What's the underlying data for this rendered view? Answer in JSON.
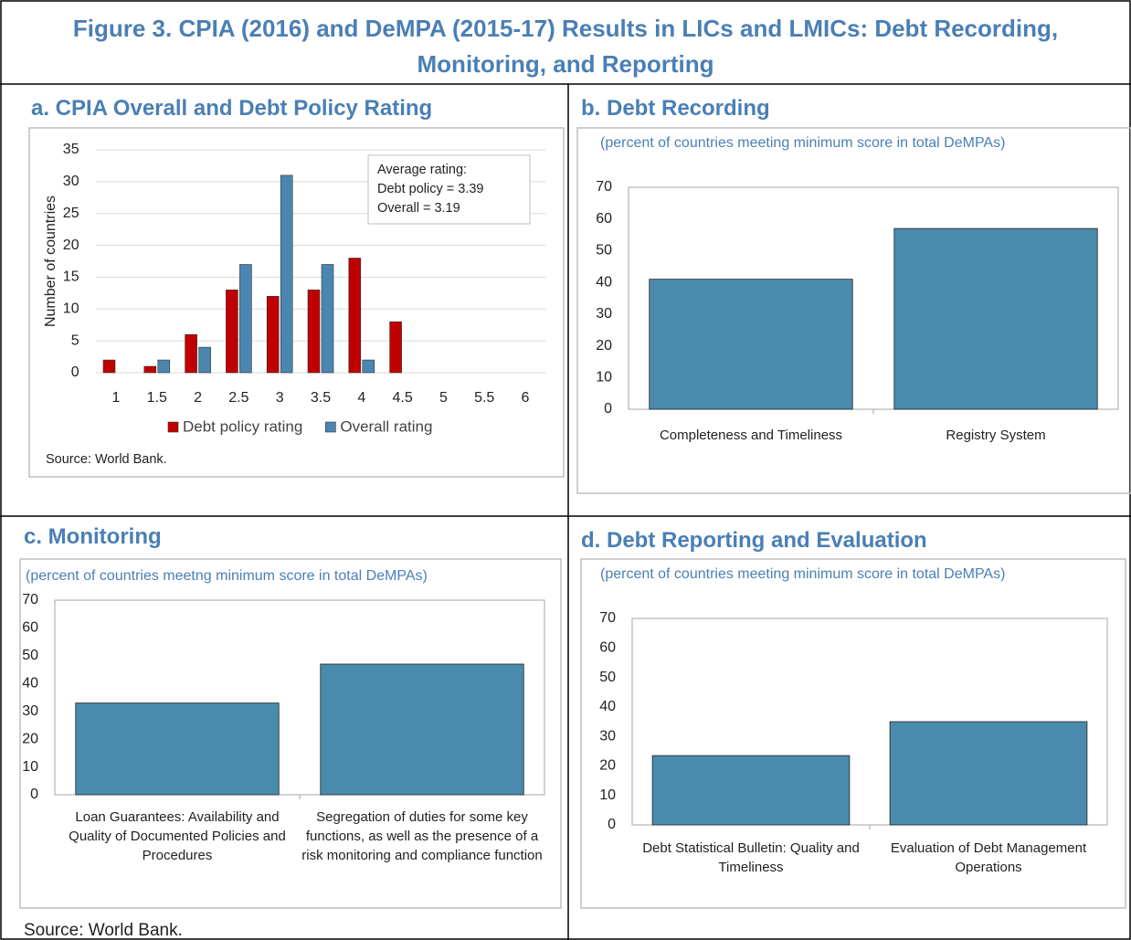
{
  "title": "Figure 3. CPIA (2016) and DeMPA (2015-17) Results in LICs and LMICs: Debt Recording, Monitoring, and Reporting",
  "source": "Source: World Bank.",
  "chart_data": [
    {
      "type": "grouped_bar",
      "title": "a. CPIA Overall and Debt Policy Rating",
      "y_label": "Number of countries",
      "categories": [
        "1",
        "1.5",
        "2",
        "2.5",
        "3",
        "3.5",
        "4",
        "4.5",
        "5",
        "5.5",
        "6"
      ],
      "series": [
        {
          "name": "Debt policy rating",
          "color": "#c00000",
          "values": [
            2,
            1,
            6,
            13,
            12,
            13,
            18,
            8,
            null,
            null,
            null
          ]
        },
        {
          "name": "Overall rating",
          "color": "#4a86b0",
          "values": [
            null,
            2,
            4,
            17,
            31,
            17,
            2,
            null,
            null,
            null,
            null
          ]
        }
      ],
      "ylim": [
        0,
        35
      ],
      "yticks": [
        0,
        5,
        10,
        15,
        20,
        25,
        30,
        35
      ],
      "grid": true,
      "annotation": [
        "Average rating:",
        "Debt policy = 3.39",
        "Overall = 3.19"
      ],
      "source": "Source: World Bank."
    },
    {
      "type": "bar",
      "title": "b. Debt Recording",
      "subtitle": "(percent of countries meeting minimum score in total DeMPAs)",
      "categories": [
        "Completeness and Timeliness",
        "Registry System"
      ],
      "values": [
        41,
        57
      ],
      "color": "#4a8bad",
      "ylim": [
        0,
        70
      ],
      "yticks": [
        0,
        10,
        20,
        30,
        40,
        50,
        60,
        70
      ],
      "grid": false
    },
    {
      "type": "bar",
      "title": "c. Monitoring",
      "subtitle": "(percent of countries meetng minimum score in total DeMPAs)",
      "categories": [
        "Loan Guarantees: Availability and Quality of Documented Policies and Procedures",
        "Segregation of duties for some key functions, as well as the presence of a risk monitoring and compliance function"
      ],
      "values": [
        33,
        47
      ],
      "color": "#4a8bad",
      "ylim": [
        0,
        70
      ],
      "yticks": [
        0,
        10,
        20,
        30,
        40,
        50,
        60,
        70
      ],
      "grid": false
    },
    {
      "type": "bar",
      "title": "d. Debt Reporting and Evaluation",
      "subtitle": "(percent of countries meeting minimum score in total DeMPAs)",
      "categories": [
        "Debt Statistical Bulletin: Quality and Timeliness",
        "Evaluation of Debt Management Operations"
      ],
      "values": [
        23.5,
        35
      ],
      "color": "#4a8bad",
      "ylim": [
        0,
        70
      ],
      "yticks": [
        0,
        10,
        20,
        30,
        40,
        50,
        60,
        70
      ],
      "grid": false
    }
  ]
}
